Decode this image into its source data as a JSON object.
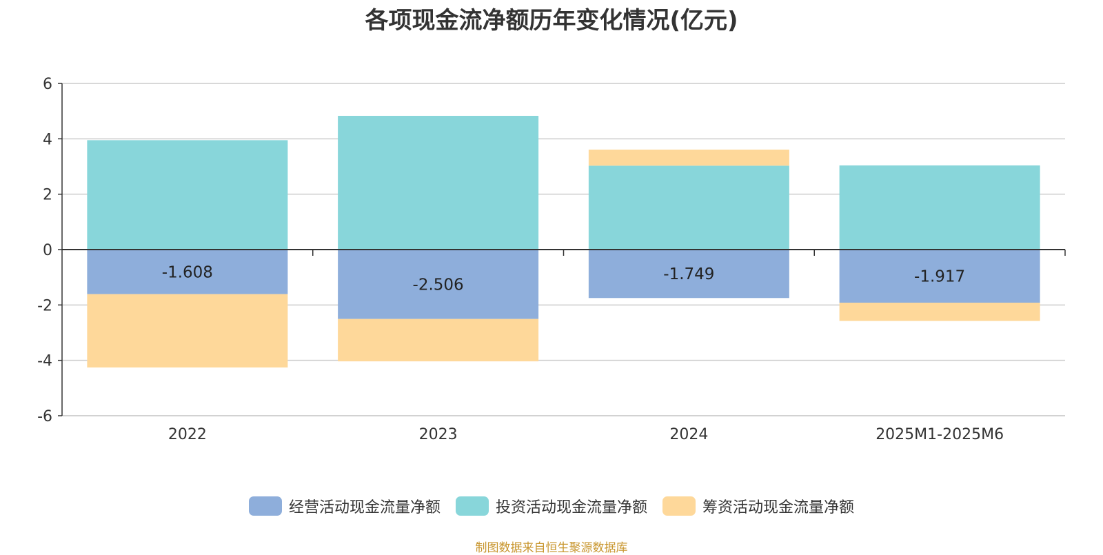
{
  "chart_data": {
    "type": "bar",
    "stacked": true,
    "title": "各项现金流净额历年变化情况(亿元)",
    "categories": [
      "2022",
      "2023",
      "2024",
      "2025M1-2025M6"
    ],
    "series": [
      {
        "name": "经营活动现金流量净额",
        "color": "#8eaedb",
        "values": [
          -1.608,
          -2.506,
          -1.749,
          -1.917
        ],
        "show_labels": true
      },
      {
        "name": "投资活动现金流量净额",
        "color": "#88d6da",
        "values": [
          3.95,
          4.83,
          3.03,
          3.04
        ],
        "show_labels": false
      },
      {
        "name": "筹资活动现金流量净额",
        "color": "#fed89a",
        "values": [
          -2.65,
          -1.53,
          0.58,
          -0.66
        ],
        "show_labels": false
      }
    ],
    "data_labels": [
      "-1.608",
      "-2.506",
      "-1.749",
      "-1.917"
    ],
    "y_ticks": [
      "6",
      "4",
      "2",
      "0",
      "-2",
      "-4",
      "-6"
    ],
    "ylim": [
      -6,
      6
    ],
    "grid": true,
    "legend_position": "bottom"
  },
  "source_text": "制图数据来自恒生聚源数据库"
}
